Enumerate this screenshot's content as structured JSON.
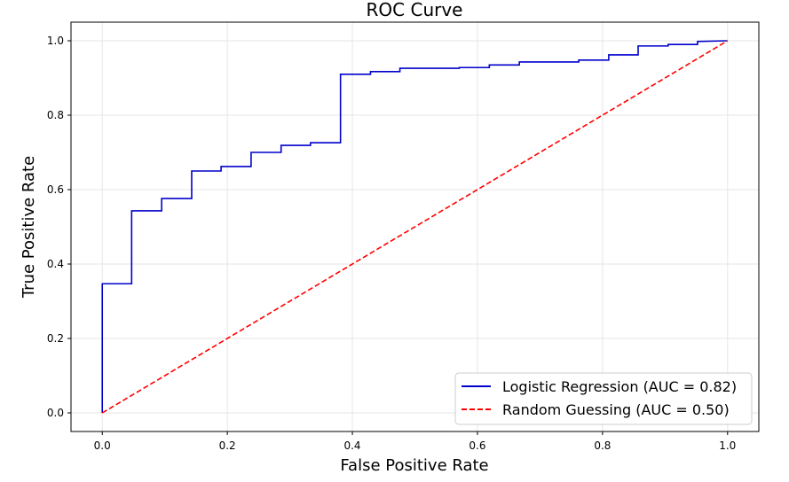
{
  "chart_data": {
    "type": "line",
    "title": "ROC Curve",
    "xlabel": "False Positive Rate",
    "ylabel": "True Positive Rate",
    "xlim": [
      -0.05,
      1.05
    ],
    "ylim": [
      -0.05,
      1.05
    ],
    "xticks": [
      0.0,
      0.2,
      0.4,
      0.6,
      0.8,
      1.0
    ],
    "yticks": [
      0.0,
      0.2,
      0.4,
      0.6,
      0.8,
      1.0
    ],
    "xtick_labels": [
      "0.0",
      "0.2",
      "0.4",
      "0.6",
      "0.8",
      "1.0"
    ],
    "ytick_labels": [
      "0.0",
      "0.2",
      "0.4",
      "0.6",
      "0.8",
      "1.0"
    ],
    "grid": true,
    "legend_location": "lower-right",
    "series": [
      {
        "name": "Logistic Regression (AUC = 0.82)",
        "color": "#0000cc",
        "style": "solid",
        "x": [
          0.0,
          0.0,
          0.047,
          0.047,
          0.095,
          0.095,
          0.143,
          0.143,
          0.19,
          0.19,
          0.238,
          0.238,
          0.286,
          0.286,
          0.333,
          0.333,
          0.381,
          0.381,
          0.429,
          0.429,
          0.476,
          0.476,
          0.571,
          0.571,
          0.619,
          0.619,
          0.667,
          0.667,
          0.762,
          0.762,
          0.81,
          0.81,
          0.857,
          0.857,
          0.905,
          0.905,
          0.952,
          0.952,
          1.0
        ],
        "y": [
          0.0,
          0.347,
          0.347,
          0.543,
          0.543,
          0.576,
          0.576,
          0.65,
          0.65,
          0.662,
          0.662,
          0.7,
          0.7,
          0.719,
          0.719,
          0.726,
          0.726,
          0.91,
          0.91,
          0.917,
          0.917,
          0.926,
          0.926,
          0.928,
          0.928,
          0.935,
          0.935,
          0.943,
          0.943,
          0.948,
          0.948,
          0.962,
          0.962,
          0.986,
          0.986,
          0.99,
          0.99,
          0.998,
          1.0
        ]
      },
      {
        "name": "Random Guessing (AUC = 0.50)",
        "color": "#ff0000",
        "style": "dashed",
        "x": [
          0.0,
          1.0
        ],
        "y": [
          0.0,
          1.0
        ]
      }
    ]
  }
}
